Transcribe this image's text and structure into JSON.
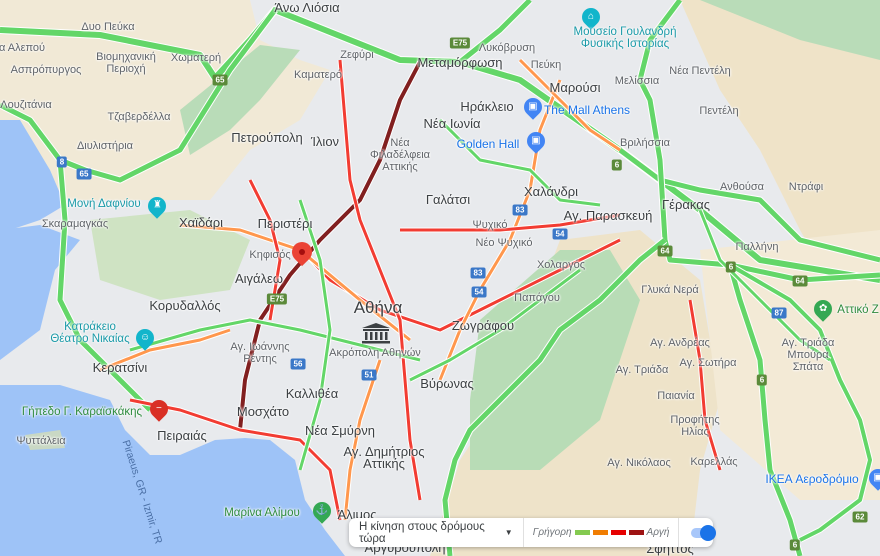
{
  "map": {
    "places": [
      "Δυο Πεύκα",
      "α Αλεπού",
      "Βιομηχανική",
      "Περιοχή",
      "Χωματερή",
      "Ασπρόπυργος",
      "Λουζιτάνια",
      "Τζαβερδέλλα",
      "Διυλιστήρια",
      "Άνω Λιόσια",
      "Ζεφύρι",
      "Καματερό",
      "Πετρούπολη",
      "Ίλιον",
      "Μεταμόρφωση",
      "Λυκόβρυση",
      "Πεύκη",
      "Μαρούσι",
      "Μελίσσια",
      "Νέα Πεντέλη",
      "Πεντέλη",
      "Ηράκλειο",
      "Νέα Ιωνία",
      "Νέα",
      "Φιλαδέλφεια",
      "Αττικής",
      "Βριλήσσια",
      "Ανθούσα",
      "Ντράφι",
      "Χαλάνδρι",
      "Γαλάτσι",
      "Περιστέρι",
      "Χαϊδάρι",
      "Σκαραμαγκάς",
      "Κηφισός",
      "Αιγάλεω",
      "Γέρακας",
      "Αγ. Παρασκευή",
      "Ψυχικό",
      "Νέο Ψυχικό",
      "Χολαργός",
      "Παλλήνη",
      "Γλυκά Νερά",
      "Κορυδαλλός",
      "Αθήνα",
      "Παπάγου",
      "Ζωγράφου",
      "Αγ. Ιωάννης",
      "Ρέντης",
      "Ακρόπολη Αθηνών",
      "Κερατσίνι",
      "Αγ. Ανδρέας",
      "Αγ. Σωτήρα",
      "Αγ. Τριάδα",
      "Μπούρα",
      "Σπάτα",
      "Αγ. Τριάδα",
      "Βύρωνας",
      "Καλλιθέα",
      "Παιανία",
      "Μοσχάτο",
      "Προφήτης",
      "Ηλίας",
      "Ψυττάλεια",
      "Πειραιάς",
      "Νέα Σμύρνη",
      "Αγ. Δημήτριος",
      "Αττικής",
      "Αγ. Νικόλαος",
      "Καρελλάς",
      "Άλιμος",
      "Αργυρούπολη",
      "Σφηττός",
      "Piraeus, GR - Izmir, TR"
    ],
    "pois": [
      {
        "name": "Μουσείο Γουλανδρή",
        "name2": "Φυσικής Ιστορίας",
        "icon": "museum-icon"
      },
      {
        "name": "The Mall Athens",
        "icon": "shopping-icon"
      },
      {
        "name": "Golden Hall",
        "icon": "shopping-icon"
      },
      {
        "name": "Μονή Δαφνίου",
        "icon": "monastery-icon"
      },
      {
        "name": "Κατράκειο",
        "name2": "Θέατρο Νικαίας",
        "icon": "theater-icon"
      },
      {
        "name": "Γήπεδο Γ. Καραϊσκάκης",
        "icon": "stadium-closed-icon"
      },
      {
        "name": "Μαρίνα Αλίμου",
        "icon": "marina-icon"
      },
      {
        "name": "IKEA Αεροδρόμιο",
        "icon": "shopping-icon"
      },
      {
        "name": "Αττικό Ζ",
        "icon": "zoo-icon"
      }
    ],
    "shields": [
      "E75",
      "65",
      "65",
      "8",
      "E75",
      "56",
      "51",
      "83",
      "83",
      "54",
      "54",
      "6",
      "64",
      "6",
      "64",
      "87",
      "6",
      "62",
      "6"
    ],
    "selected_marker": "location-pin-icon"
  },
  "traffic_legend": {
    "mode_label": "Η κίνηση στους δρόμους τώρα",
    "fast_label": "Γρήγορη",
    "slow_label": "Αργή",
    "colors": [
      "#63d668",
      "#ff974d",
      "#f23c32",
      "#811f1f"
    ],
    "layer_enabled": true
  }
}
